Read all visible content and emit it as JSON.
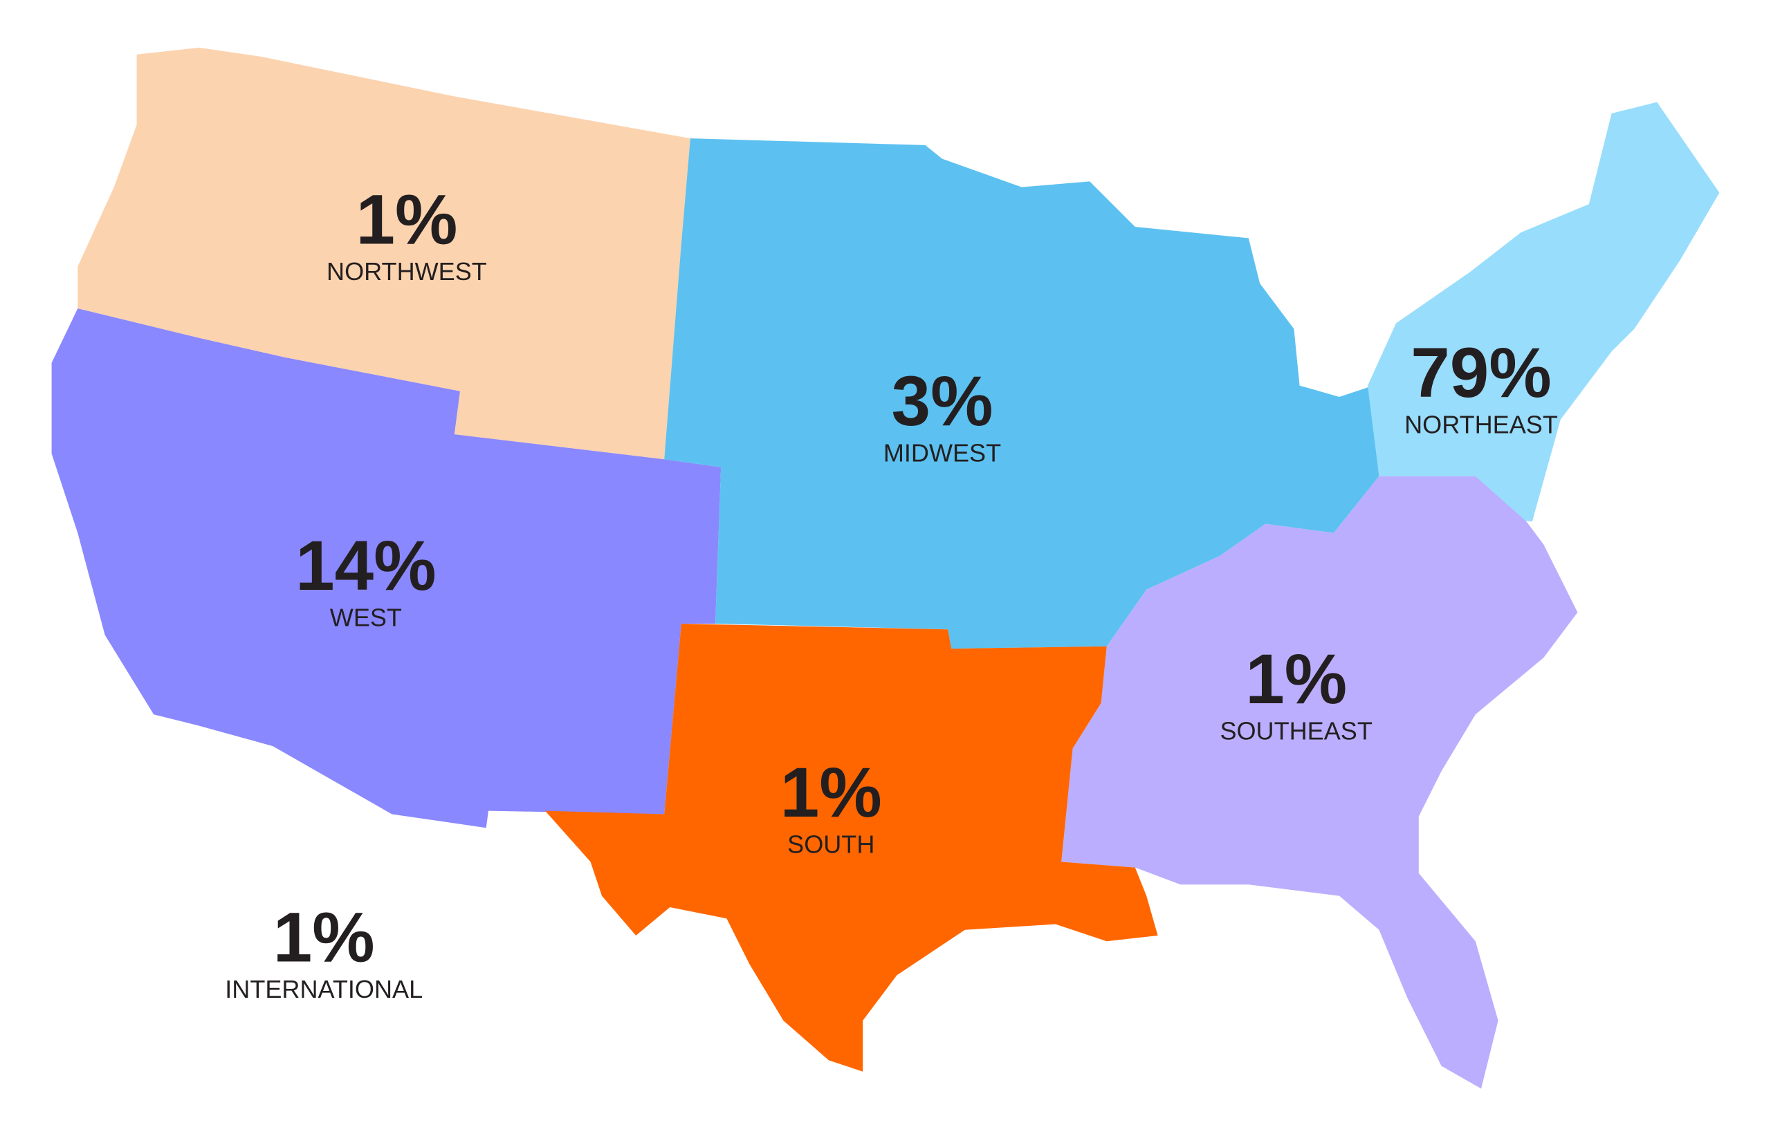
{
  "chart_data": {
    "type": "map",
    "categories": [
      "NORTHWEST",
      "MIDWEST",
      "NORTHEAST",
      "WEST",
      "SOUTHEAST",
      "SOUTH",
      "INTERNATIONAL"
    ],
    "values": [
      1,
      3,
      79,
      14,
      1,
      1,
      1
    ],
    "value_labels": [
      "1%",
      "3%",
      "79%",
      "14%",
      "1%",
      "1%",
      "1%"
    ],
    "colors": [
      "#fcd3af",
      "#5cc1f0",
      "#99ddfc",
      "#8a88fe",
      "#bbaefe",
      "#ff6600",
      null
    ]
  }
}
